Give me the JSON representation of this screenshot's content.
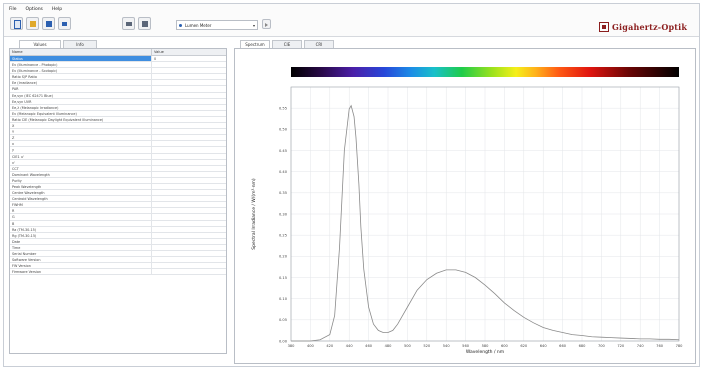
{
  "menu": {
    "items": [
      "File",
      "Options",
      "Help"
    ]
  },
  "toolbar": {
    "mode_value": "Lumen Meter",
    "buttons": [
      {
        "name": "new-icon",
        "color": "#2b5fb0"
      },
      {
        "name": "open-folder-icon",
        "color": "#e0a92b"
      },
      {
        "name": "save-icon",
        "color": "#2b5fb0"
      },
      {
        "name": "export-icon",
        "color": "#2b5fb0"
      },
      {
        "name": "print-icon",
        "color": "#5b6678"
      },
      {
        "name": "printer-icon",
        "color": "#5b6678"
      }
    ]
  },
  "brand": {
    "name": "Gigahertz-Optik",
    "color": "#8b1e1e"
  },
  "left_panel": {
    "tabs": [
      "Values",
      "Info"
    ],
    "columns": [
      "Name",
      "Value"
    ],
    "rows": [
      {
        "name": "Status",
        "value": "0",
        "selected": true
      },
      {
        "name": "Ev (Illuminance - Photopic)",
        "value": "",
        "selected": false
      },
      {
        "name": "Ev (Illuminance - Scotopic)",
        "value": "",
        "selected": false
      },
      {
        "name": "Ratio S/P Ratio",
        "value": "",
        "selected": false
      },
      {
        "name": "Ee (Irradiance)",
        "value": "",
        "selected": false
      },
      {
        "name": "PAR",
        "value": "",
        "selected": false
      },
      {
        "name": "Ee,syn (IEC 62471 Blue)",
        "value": "",
        "selected": false
      },
      {
        "name": "Ee,syn UVR",
        "value": "",
        "selected": false
      },
      {
        "name": "Ee,λ (Melanopic Irradiance)",
        "value": "",
        "selected": false
      },
      {
        "name": "Ev (Melanopic Equivalent Illuminance)",
        "value": "",
        "selected": false
      },
      {
        "name": "Ratio CIE (Melanopic Daylight Equivalent Illuminance)",
        "value": "",
        "selected": false
      },
      {
        "name": "X",
        "value": "",
        "selected": false
      },
      {
        "name": "Y",
        "value": "",
        "selected": false
      },
      {
        "name": "Z",
        "value": "",
        "selected": false
      },
      {
        "name": "x",
        "value": "",
        "selected": false
      },
      {
        "name": "y",
        "value": "",
        "selected": false
      },
      {
        "name": "CIE1 u'",
        "value": "",
        "selected": false
      },
      {
        "name": "v'",
        "value": "",
        "selected": false
      },
      {
        "name": "CCT",
        "value": "",
        "selected": false
      },
      {
        "name": "Dominant Wavelength",
        "value": "",
        "selected": false
      },
      {
        "name": "Purity",
        "value": "",
        "selected": false
      },
      {
        "name": "Peak Wavelength",
        "value": "",
        "selected": false
      },
      {
        "name": "Centre Wavelength",
        "value": "",
        "selected": false
      },
      {
        "name": "Centroid Wavelength",
        "value": "",
        "selected": false
      },
      {
        "name": "FWHM",
        "value": "",
        "selected": false
      },
      {
        "name": "R",
        "value": "",
        "selected": false
      },
      {
        "name": "G",
        "value": "",
        "selected": false
      },
      {
        "name": "B",
        "value": "",
        "selected": false
      },
      {
        "name": "Ra (TM-30-15)",
        "value": "",
        "selected": false
      },
      {
        "name": "Rg (TM-30-15)",
        "value": "",
        "selected": false
      },
      {
        "name": "Date",
        "value": "",
        "selected": false
      },
      {
        "name": "Time",
        "value": "",
        "selected": false
      },
      {
        "name": "Serial Number",
        "value": "",
        "selected": false
      },
      {
        "name": "Software Version",
        "value": "",
        "selected": false
      },
      {
        "name": "FW Version",
        "value": "",
        "selected": false
      },
      {
        "name": "Firmware Version",
        "value": "",
        "selected": false
      }
    ]
  },
  "right_panel": {
    "tabs": [
      "Spectrum",
      "CIE",
      "CRI"
    ]
  },
  "chart_data": {
    "type": "line",
    "xlabel": "Wavelength / nm",
    "ylabel": "Spectral Irradiance / W/(m²·nm)",
    "xlim": [
      380,
      780
    ],
    "ylim": [
      0,
      0.6
    ],
    "xticks": [
      380,
      400,
      420,
      440,
      460,
      480,
      500,
      520,
      540,
      560,
      580,
      600,
      620,
      640,
      660,
      680,
      700,
      720,
      740,
      760,
      780
    ],
    "yticks": [
      0,
      0.05,
      0.1,
      0.15,
      0.2,
      0.25,
      0.3,
      0.35,
      0.4,
      0.45,
      0.5,
      0.55
    ],
    "ytick_labels": [
      "0.00",
      "0.05",
      "0.10",
      "0.15",
      "0.20",
      "0.25",
      "0.30",
      "0.35",
      "0.40",
      "0.45",
      "0.50",
      "0.55"
    ],
    "grid": true,
    "line_color": "#8a8a8a",
    "spectrum_bar": true,
    "series": [
      {
        "x": [
          380,
          400,
          410,
          420,
          425,
          430,
          435,
          440,
          442,
          445,
          447,
          450,
          452,
          455,
          460,
          465,
          470,
          475,
          480,
          485,
          490,
          495,
          500,
          505,
          510,
          520,
          530,
          540,
          550,
          560,
          570,
          580,
          590,
          600,
          610,
          620,
          630,
          640,
          650,
          660,
          670,
          680,
          690,
          700,
          710,
          720,
          730,
          740,
          750,
          760,
          770,
          780
        ],
        "y": [
          0,
          0,
          0.003,
          0.015,
          0.06,
          0.22,
          0.45,
          0.548,
          0.556,
          0.53,
          0.48,
          0.37,
          0.27,
          0.17,
          0.08,
          0.04,
          0.025,
          0.02,
          0.02,
          0.025,
          0.04,
          0.06,
          0.08,
          0.1,
          0.12,
          0.145,
          0.16,
          0.168,
          0.168,
          0.162,
          0.15,
          0.132,
          0.112,
          0.09,
          0.072,
          0.056,
          0.043,
          0.032,
          0.025,
          0.02,
          0.015,
          0.013,
          0.01,
          0.009,
          0.008,
          0.007,
          0.006,
          0.005,
          0.005,
          0.004,
          0.004,
          0.003
        ]
      }
    ]
  }
}
